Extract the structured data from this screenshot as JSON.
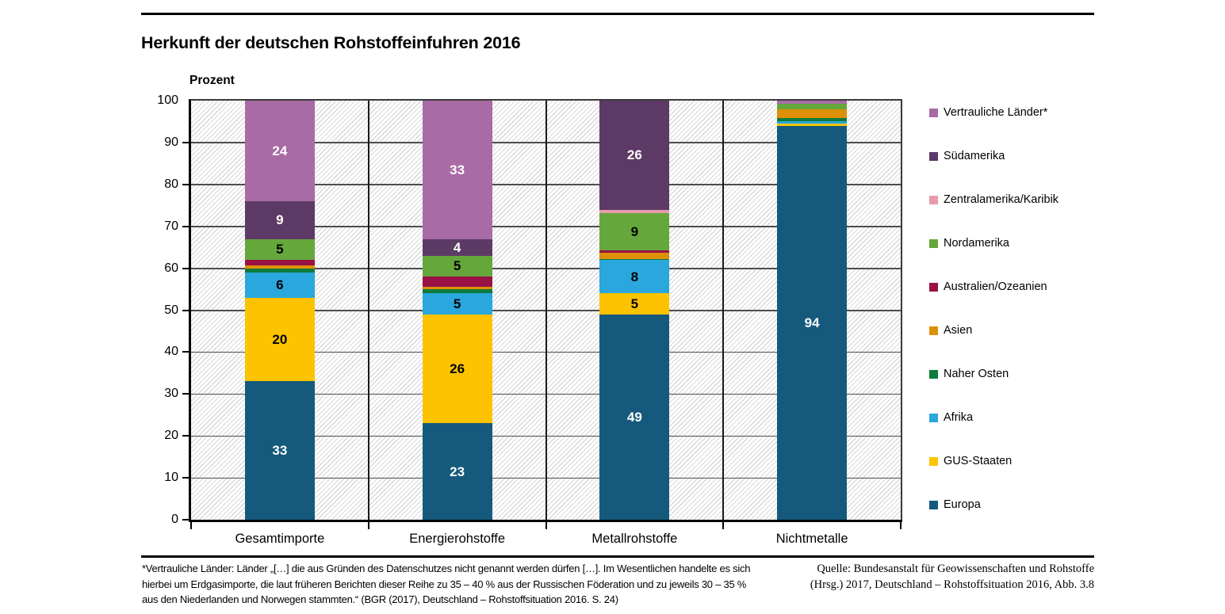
{
  "header": {
    "title": "Herkunft der deutschen Rohstoffeinfuhren 2016"
  },
  "chart_data": {
    "type": "bar",
    "stacked": true,
    "title": "Herkunft der deutschen Rohstoffeinfuhren 2016",
    "ylabel": "Prozent",
    "ylim": [
      0,
      100
    ],
    "yticks": [
      0,
      10,
      20,
      30,
      40,
      50,
      60,
      70,
      80,
      90,
      100
    ],
    "grid": true,
    "label_min_value": 4,
    "categories": [
      "Gesamtimporte",
      "Energierohstoffe",
      "Metallrohstoffe",
      "Nichtmetalle"
    ],
    "series": [
      {
        "name": "Europa",
        "color": "#155a7c",
        "label_color": "#ffffff",
        "values": [
          33,
          23,
          49,
          94
        ]
      },
      {
        "name": "GUS-Staaten",
        "color": "#fdc300",
        "label_color": "#000000",
        "values": [
          20,
          26,
          5,
          0.5
        ]
      },
      {
        "name": "Afrika",
        "color": "#2aa7dd",
        "label_color": "#000000",
        "values": [
          6,
          5,
          8,
          0.5
        ]
      },
      {
        "name": "Naher Osten",
        "color": "#0e7a3c",
        "label_color": "#ffffff",
        "values": [
          0.9,
          1.1,
          0.2,
          0.8
        ]
      },
      {
        "name": "Asien",
        "color": "#dd9005",
        "label_color": "#000000",
        "values": [
          0.8,
          0.4,
          1.6,
          2.2
        ]
      },
      {
        "name": "Australien/Ozeanien",
        "color": "#9a1145",
        "label_color": "#ffffff",
        "values": [
          1.3,
          2.5,
          0.4,
          0
        ]
      },
      {
        "name": "Nordamerika",
        "color": "#66a73c",
        "label_color": "#000000",
        "values": [
          5,
          5,
          9,
          1.3
        ]
      },
      {
        "name": "Zentralamerika/Karibik",
        "color": "#e69cab",
        "label_color": "#000000",
        "values": [
          0,
          0,
          0.8,
          0
        ]
      },
      {
        "name": "Südamerika",
        "color": "#5d3a66",
        "label_color": "#ffffff",
        "values": [
          9,
          4,
          26,
          0
        ]
      },
      {
        "name": "Vertrauliche Länder*",
        "color": "#a96ba5",
        "label_color": "#ffffff",
        "values": [
          24,
          33,
          0,
          0.7
        ]
      }
    ]
  },
  "legend": {
    "items": [
      {
        "label": "Vertrauliche Länder*",
        "color": "#a96ba5"
      },
      {
        "label": "Südamerika",
        "color": "#5d3a66"
      },
      {
        "label": "Zentralamerika/Karibik",
        "color": "#e69cab"
      },
      {
        "label": "Nordamerika",
        "color": "#66a73c"
      },
      {
        "label": "Australien/Ozeanien",
        "color": "#9a1145"
      },
      {
        "label": "Asien",
        "color": "#dd9005"
      },
      {
        "label": "Naher Osten",
        "color": "#0e7a3c"
      },
      {
        "label": "Afrika",
        "color": "#2aa7dd"
      },
      {
        "label": "GUS-Staaten",
        "color": "#fdc300"
      },
      {
        "label": "Europa",
        "color": "#155a7c"
      }
    ]
  },
  "footer": {
    "note_lines": [
      "*Vertrauliche Länder: Länder „[…] die aus Gründen des Datenschutzes nicht genannt werden dürfen […]. Im Wesentlichen handelte es sich",
      "hierbei um Erdgasimporte, die laut früheren Berichten dieser Reihe zu 35 – 40 % aus der Russischen Föderation und zu jeweils 30 – 35 %",
      "aus den Niederlanden und Norwegen stammten.“ (BGR (2017), Deutschland – Rohstoffsituation 2016. S. 24)"
    ],
    "source_lines": [
      "Quelle: Bundesanstalt für Geowissenschaften und Rohstoffe",
      "(Hrsg.) 2017, Deutschland – Rohstoffsituation 2016, Abb. 3.8"
    ]
  }
}
